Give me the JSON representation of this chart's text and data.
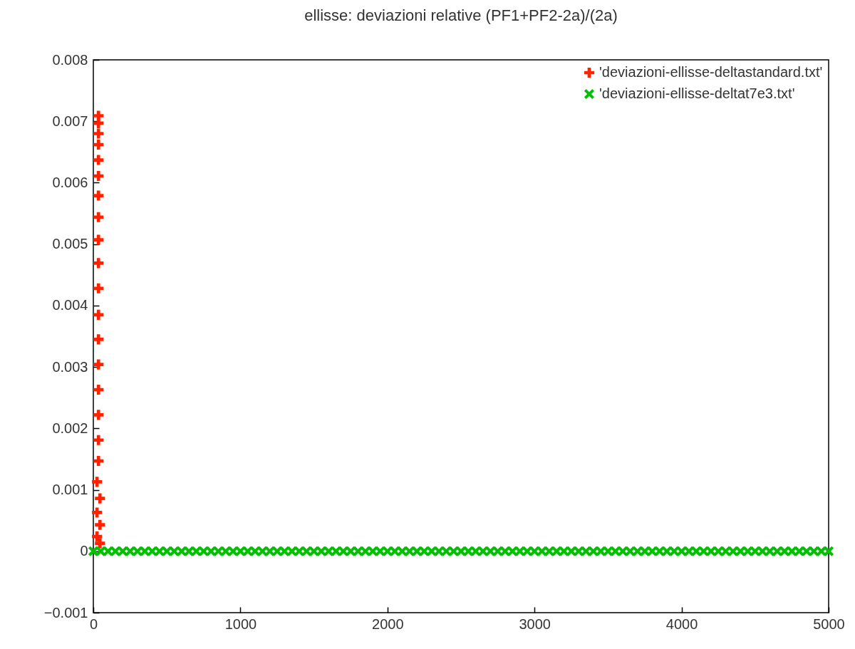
{
  "chart_data": {
    "type": "scatter",
    "title": "ellisse: deviazioni relative (PF1+PF2-2a)/(2a)",
    "xlim": [
      0,
      5000
    ],
    "xticks": [
      0,
      1000,
      2000,
      3000,
      4000,
      5000
    ],
    "ylim": [
      -0.001,
      0.008
    ],
    "yticks": [
      -0.001,
      0,
      0.001,
      0.002,
      0.003,
      0.004,
      0.005,
      0.006,
      0.007,
      0.008
    ],
    "grid": false,
    "legend": "top right",
    "series": [
      {
        "name": "'deviazioni-ellisse-deltastandard.txt'",
        "color": "#ff2200",
        "marker": "cross",
        "x": [
          35,
          35,
          35,
          35,
          35,
          35,
          35,
          35,
          35,
          35,
          35,
          35,
          35,
          35,
          35,
          35,
          35,
          35,
          25,
          45,
          25,
          45,
          25,
          45
        ],
        "values": [
          0.00709,
          0.00697,
          0.0068,
          0.00662,
          0.00637,
          0.00611,
          0.00579,
          0.00544,
          0.00507,
          0.00469,
          0.00428,
          0.00385,
          0.00345,
          0.00304,
          0.00263,
          0.00222,
          0.00181,
          0.00147,
          0.00113,
          0.00086,
          0.00063,
          0.00043,
          0.00024,
          0.00013
        ]
      },
      {
        "name": "'deviazioni-ellisse-deltat7e3.txt'",
        "color": "#00c000",
        "marker": "x",
        "x": [
          0,
          50,
          100,
          150,
          200,
          250,
          300,
          350,
          400,
          450,
          500,
          550,
          600,
          650,
          700,
          750,
          800,
          850,
          900,
          950,
          1000,
          1050,
          1100,
          1150,
          1200,
          1250,
          1300,
          1350,
          1400,
          1450,
          1500,
          1550,
          1600,
          1650,
          1700,
          1750,
          1800,
          1850,
          1900,
          1950,
          2000,
          2050,
          2100,
          2150,
          2200,
          2250,
          2300,
          2350,
          2400,
          2450,
          2500,
          2550,
          2600,
          2650,
          2700,
          2750,
          2800,
          2850,
          2900,
          2950,
          3000,
          3050,
          3100,
          3150,
          3200,
          3250,
          3300,
          3350,
          3400,
          3450,
          3500,
          3550,
          3600,
          3650,
          3700,
          3750,
          3800,
          3850,
          3900,
          3950,
          4000,
          4050,
          4100,
          4150,
          4200,
          4250,
          4300,
          4350,
          4400,
          4450,
          4500,
          4550,
          4600,
          4650,
          4700,
          4750,
          4800,
          4850,
          4900,
          4950,
          5000
        ],
        "values": [
          0,
          0,
          0,
          0,
          0,
          0,
          0,
          0,
          0,
          0,
          0,
          0,
          0,
          0,
          0,
          0,
          0,
          0,
          0,
          0,
          0,
          0,
          0,
          0,
          0,
          0,
          0,
          0,
          0,
          0,
          0,
          0,
          0,
          0,
          0,
          0,
          0,
          0,
          0,
          0,
          0,
          0,
          0,
          0,
          0,
          0,
          0,
          0,
          0,
          0,
          0,
          0,
          0,
          0,
          0,
          0,
          0,
          0,
          0,
          0,
          0,
          0,
          0,
          0,
          0,
          0,
          0,
          0,
          0,
          0,
          0,
          0,
          0,
          0,
          0,
          0,
          0,
          0,
          0,
          0,
          0,
          0,
          0,
          0,
          0,
          0,
          0,
          0,
          0,
          0,
          0,
          0,
          0,
          0,
          0,
          0,
          0,
          0,
          0,
          0,
          0
        ]
      }
    ]
  }
}
